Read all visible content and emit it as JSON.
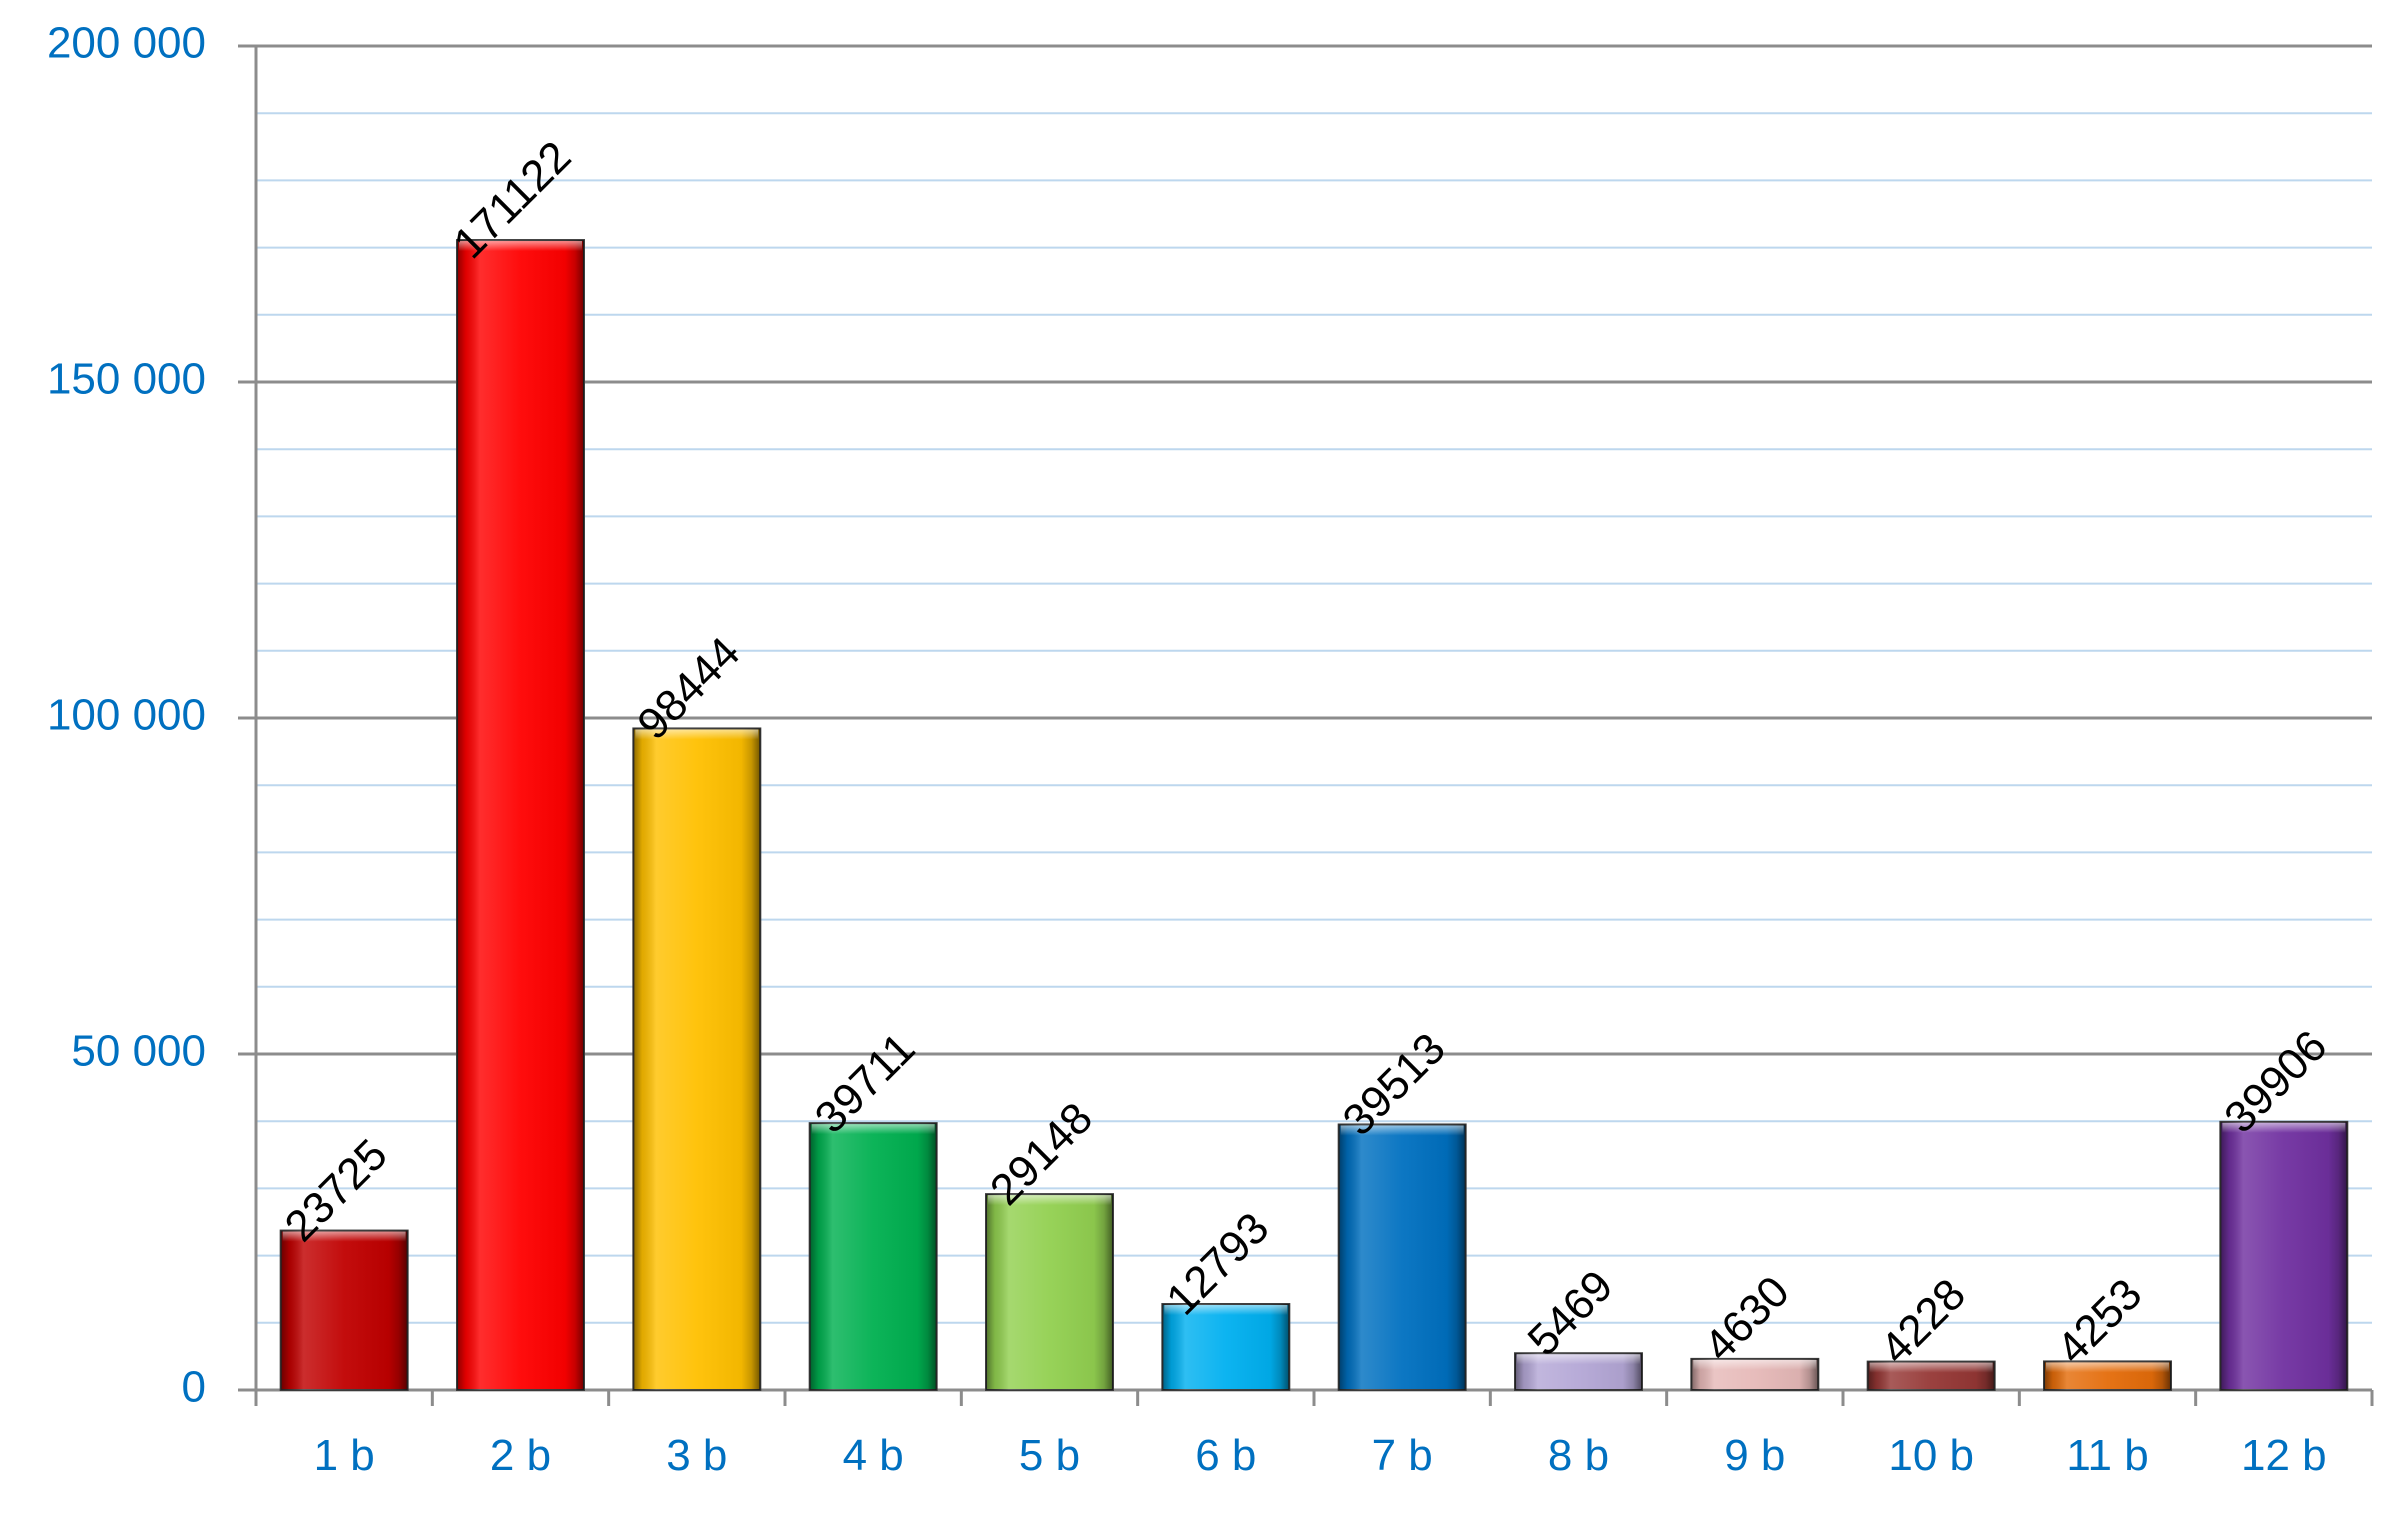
{
  "chart_data": {
    "type": "bar",
    "title": "",
    "xlabel": "",
    "ylabel": "",
    "categories": [
      "1 b",
      "2 b",
      "3 b",
      "4 b",
      "5 b",
      "6 b",
      "7 b",
      "8 b",
      "9 b",
      "10 b",
      "11 b",
      "12 b"
    ],
    "values": [
      23725,
      171122,
      98444,
      39711,
      29148,
      12793,
      39513,
      5469,
      4630,
      4228,
      4253,
      39906
    ],
    "data_labels": [
      "23725",
      "171122",
      "98444",
      "39711",
      "29148",
      "12793",
      "39513",
      "5469",
      "4630",
      "4228",
      "4253",
      "39906"
    ],
    "bar_colors": [
      "#C00000",
      "#FF0000",
      "#FFC000",
      "#00B050",
      "#92D050",
      "#00B0F0",
      "#0070C0",
      "#B4A7D6",
      "#E6B9B8",
      "#953735",
      "#E46C0A",
      "#7030A0"
    ],
    "ylim": [
      0,
      200000
    ],
    "yticks": [
      0,
      50000,
      100000,
      150000,
      200000
    ],
    "ytick_labels": [
      "0",
      "50 000",
      "100 000",
      "150 000",
      "200 000"
    ],
    "minor_grid_step": 10000,
    "grid": true,
    "legend": "none",
    "tick_label_color": "#0070C0",
    "major_grid_color": "#8C8C8C",
    "minor_grid_color": "#BDD7EE",
    "axis_color": "#8C8C8C"
  }
}
